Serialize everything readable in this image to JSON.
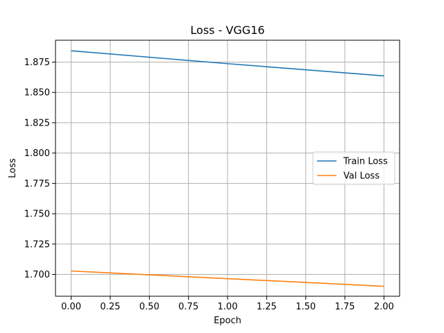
{
  "chart_data": {
    "type": "line",
    "title": "Loss - VGG16",
    "xlabel": "Epoch",
    "ylabel": "Loss",
    "xlim": [
      -0.1,
      2.1
    ],
    "ylim": [
      1.682,
      1.893
    ],
    "xticks": [
      0.0,
      0.25,
      0.5,
      0.75,
      1.0,
      1.25,
      1.5,
      1.75,
      2.0
    ],
    "xtick_labels": [
      "0.00",
      "0.25",
      "0.50",
      "0.75",
      "1.00",
      "1.25",
      "1.50",
      "1.75",
      "2.00"
    ],
    "yticks": [
      1.7,
      1.725,
      1.75,
      1.775,
      1.8,
      1.825,
      1.85,
      1.875
    ],
    "ytick_labels": [
      "1.700",
      "1.725",
      "1.750",
      "1.775",
      "1.800",
      "1.825",
      "1.850",
      "1.875"
    ],
    "grid": true,
    "legend_position": "center-right",
    "series": [
      {
        "name": "Train Loss",
        "color": "#1f77b4",
        "x": [
          0,
          1,
          2
        ],
        "values": [
          1.8843,
          1.8737,
          1.8636
        ]
      },
      {
        "name": "Val Loss",
        "color": "#ff7f0e",
        "x": [
          0,
          1,
          2
        ],
        "values": [
          1.7028,
          1.6965,
          1.6902
        ]
      }
    ]
  }
}
